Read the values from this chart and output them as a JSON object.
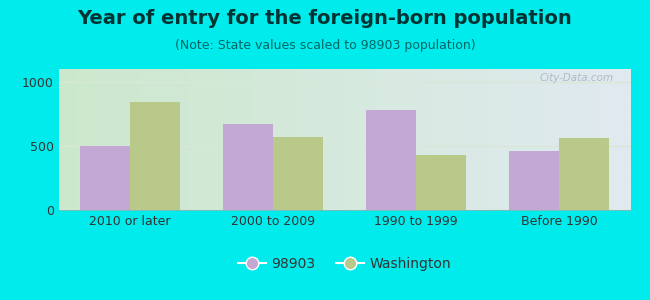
{
  "title": "Year of entry for the foreign-born population",
  "subtitle": "(Note: State values scaled to 98903 population)",
  "categories": [
    "2010 or later",
    "2000 to 2009",
    "1990 to 1999",
    "Before 1990"
  ],
  "values_98903": [
    500,
    670,
    780,
    460
  ],
  "values_washington": [
    840,
    570,
    430,
    560
  ],
  "color_98903": "#c4a8d4",
  "color_washington": "#b8c98a",
  "background_outer": "#00ecec",
  "ylim": [
    0,
    1100
  ],
  "yticks": [
    0,
    500,
    1000
  ],
  "legend_label_98903": "98903",
  "legend_label_washington": "Washington",
  "title_fontsize": 14,
  "subtitle_fontsize": 9,
  "tick_fontsize": 9,
  "legend_fontsize": 10,
  "bar_width": 0.35,
  "grid_color": "#d8e8d8",
  "title_color": "#003333",
  "subtitle_color": "#006666",
  "tick_color": "#333333",
  "bg_left": "#cce8cc",
  "bg_right": "#e0eaf0"
}
